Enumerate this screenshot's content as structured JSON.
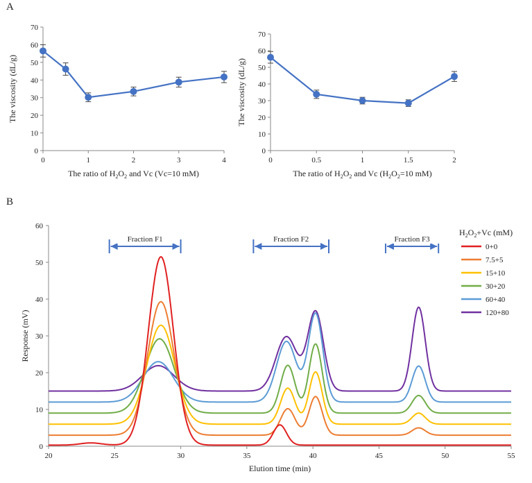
{
  "panels": {
    "a": "A",
    "b": "B"
  },
  "chart_data": [
    {
      "type": "line",
      "id": "A-left",
      "x": [
        0,
        0.5,
        1,
        2,
        3,
        4
      ],
      "values": [
        56.5,
        46.2,
        30.2,
        33.5,
        38.8,
        41.7
      ],
      "errors": [
        3.5,
        3.5,
        2.5,
        2.5,
        2.8,
        3.2
      ],
      "ylim": [
        0,
        70
      ],
      "yticks": [
        0,
        10,
        20,
        30,
        40,
        50,
        60,
        70
      ],
      "xlim": [
        0,
        4
      ],
      "xticks": [
        0,
        1,
        2,
        3,
        4
      ],
      "ylabel": "The viscosity (dL/g)",
      "xlabel": {
        "p1": "The ratio of H",
        "s1": "2",
        "p2": "O",
        "s2": "2",
        "p3": " and Vc (Vc=10 mM)"
      },
      "color": "#4472C4"
    },
    {
      "type": "line",
      "id": "A-right",
      "x": [
        0,
        0.5,
        1,
        1.5,
        2
      ],
      "values": [
        56.0,
        33.8,
        30.0,
        28.5,
        44.5
      ],
      "errors": [
        3.5,
        2.5,
        2.0,
        2.0,
        3.0
      ],
      "ylim": [
        0,
        70
      ],
      "yticks": [
        0,
        10,
        20,
        30,
        40,
        50,
        60,
        70
      ],
      "xlim": [
        0,
        2
      ],
      "xticks": [
        0,
        0.5,
        1,
        1.5,
        2
      ],
      "ylabel": "The viscosity (dL/g)",
      "xlabel": {
        "p1": "The ratio of H",
        "s1": "2",
        "p2": "O",
        "s2": "2",
        "p3": " and Vc (H",
        "s3": "2",
        "p4": "O",
        "s4": "2",
        "p5": "=10 mM)"
      },
      "color": "#4472C4"
    },
    {
      "type": "line",
      "id": "B",
      "title": "",
      "xlim": [
        20,
        55
      ],
      "xticks": [
        20,
        25,
        30,
        35,
        40,
        45,
        50,
        55
      ],
      "ylim": [
        0,
        60
      ],
      "yticks": [
        0,
        10,
        20,
        30,
        40,
        50,
        60
      ],
      "xlabel": "Elution time (min)",
      "ylabel": "Response (mV)",
      "legend_title": {
        "p1": "H",
        "s1": "2",
        "p2": "O",
        "s2": "2",
        "p3": "+Vc (mM)"
      },
      "fractions": [
        {
          "label": "Fraction F1",
          "start": 24.6,
          "end": 30.0
        },
        {
          "label": "Fraction F2",
          "start": 35.5,
          "end": 41.2
        },
        {
          "label": "Fraction F3",
          "start": 45.5,
          "end": 49.5
        }
      ],
      "series": [
        {
          "name": "0+0",
          "color": "#E02020",
          "baseline": 0.3,
          "peaks": [
            [
              23.2,
              0.6,
              0.8
            ],
            [
              28.5,
              51.2,
              0.95
            ],
            [
              37.5,
              5.5,
              0.5
            ]
          ]
        },
        {
          "name": "7.5+5",
          "color": "#ED7D31",
          "baseline": 3,
          "peaks": [
            [
              28.5,
              36.3,
              1.0
            ],
            [
              38.1,
              7.2,
              0.55
            ],
            [
              40.2,
              10.5,
              0.5
            ],
            [
              48.0,
              2.0,
              0.5
            ]
          ]
        },
        {
          "name": "15+10",
          "color": "#FFC000",
          "baseline": 6,
          "peaks": [
            [
              28.5,
              26.9,
              1.05
            ],
            [
              38.1,
              9.8,
              0.55
            ],
            [
              40.2,
              14.2,
              0.5
            ],
            [
              48.0,
              3.0,
              0.5
            ]
          ]
        },
        {
          "name": "30+20",
          "color": "#70AD47",
          "baseline": 9,
          "peaks": [
            [
              28.4,
              20.2,
              1.1
            ],
            [
              38.1,
              13.0,
              0.55
            ],
            [
              40.2,
              18.8,
              0.5
            ],
            [
              48.0,
              4.8,
              0.5
            ]
          ]
        },
        {
          "name": "60+40",
          "color": "#5B9BD5",
          "baseline": 12,
          "peaks": [
            [
              28.3,
              11.0,
              1.15
            ],
            [
              38.0,
              16.5,
              0.75
            ],
            [
              40.2,
              24.0,
              0.55
            ],
            [
              48.0,
              9.8,
              0.5
            ]
          ]
        },
        {
          "name": "120+80",
          "color": "#7030A0",
          "baseline": 15,
          "peaks": [
            [
              28.3,
              6.9,
              1.2
            ],
            [
              38.0,
              14.8,
              0.8
            ],
            [
              40.2,
              21.5,
              0.6
            ],
            [
              48.0,
              22.8,
              0.5
            ]
          ]
        }
      ]
    }
  ]
}
